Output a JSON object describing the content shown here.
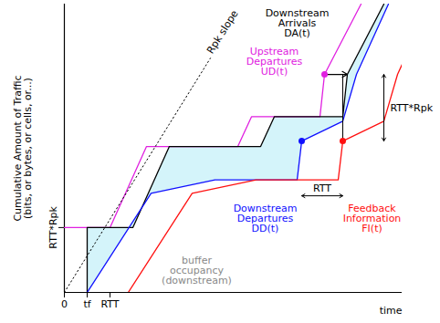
{
  "chart_data": {
    "type": "line",
    "x_label": "time",
    "y_label": [
      "Cumulative Amount of Traffic",
      "(bits, or bytes, or cells, or...)"
    ],
    "xlim": [
      0,
      370
    ],
    "ylim": [
      0,
      320
    ],
    "xticks": [
      {
        "value": 0,
        "label": "0"
      },
      {
        "value": 25,
        "label": "tf"
      },
      {
        "value": 50,
        "label": "RTT"
      }
    ],
    "yticks": [
      {
        "value": 72,
        "label": "RTT*Rpk"
      }
    ],
    "grid": false,
    "series": [
      {
        "name": "Upstream Departures UD(t)",
        "color": "#e020e0",
        "marker": "dot",
        "x": [
          0,
          50,
          90,
          190,
          205,
          280,
          285,
          325
        ],
        "values": [
          72,
          72,
          162,
          162,
          195,
          195,
          242,
          320
        ],
        "marked_point": {
          "x": 285,
          "y": 242
        }
      },
      {
        "name": "Downstream Arrivals DA(t)",
        "color": "#000000",
        "x": [
          25,
          25,
          75,
          115,
          215,
          230,
          305,
          310,
          350
        ],
        "values": [
          0,
          72,
          72,
          162,
          162,
          195,
          195,
          242,
          320
        ],
        "marked_point": {
          "x": 310,
          "y": 242
        },
        "arrow_from": "Upstream Departures UD(t)"
      },
      {
        "name": "Downstream Departures DD(t)",
        "color": "#1010ff",
        "marker": "dot",
        "x": [
          25,
          95,
          165,
          255,
          260,
          305,
          320,
          355
        ],
        "values": [
          0,
          110,
          125,
          125,
          168,
          190,
          242,
          320
        ],
        "marked_point": {
          "x": 260,
          "y": 168
        }
      },
      {
        "name": "Feedback Information FI(t)",
        "color": "#ff1010",
        "marker": "dot",
        "x": [
          70,
          140,
          210,
          300,
          305,
          350,
          365,
          400
        ],
        "values": [
          0,
          110,
          125,
          125,
          168,
          190,
          242,
          320
        ],
        "marked_point": {
          "x": 305,
          "y": 168
        }
      },
      {
        "name": "Rpk slope",
        "color": "#000000",
        "line_style": "dotted",
        "x": [
          0,
          160
        ],
        "values": [
          0,
          260
        ]
      }
    ],
    "buffer": {
      "name": "buffer occupancy (downstream)",
      "color": "#d4f4fa",
      "upper": "Downstream Arrivals DA(t)",
      "lower": "Downstream Departures DD(t)"
    },
    "annotations": [
      {
        "text": "RTT",
        "from": "Downstream Departures DD(t)",
        "to": "Feedback Information FI(t)"
      },
      {
        "text": "RTT*Rpk",
        "from": "Feedback Information FI(t)",
        "to": "Upstream Departures UD(t)"
      }
    ]
  }
}
